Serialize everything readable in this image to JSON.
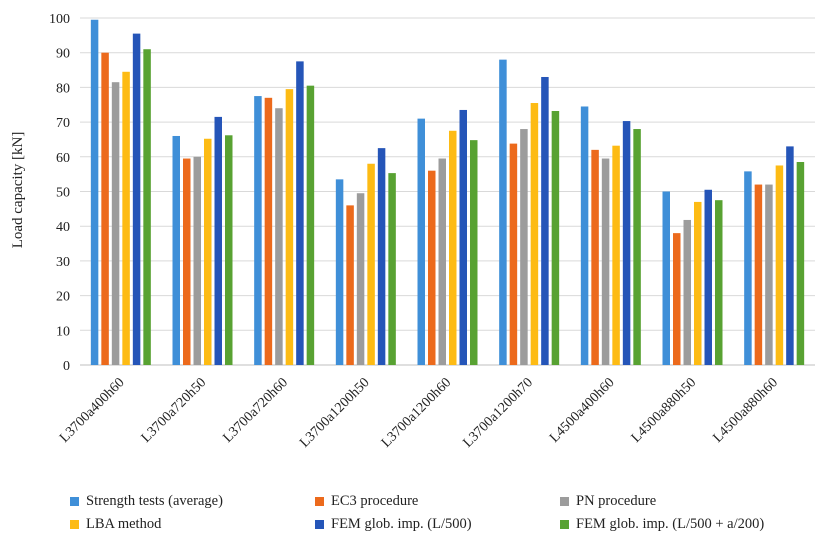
{
  "chart_data": {
    "type": "bar",
    "ylabel": "Load capacity [kN]",
    "ylim": [
      0,
      100
    ],
    "yticks": [
      0,
      10,
      20,
      30,
      40,
      50,
      60,
      70,
      80,
      90,
      100
    ],
    "grid": true,
    "legend_position": "bottom",
    "categories": [
      "L3700a400h60",
      "L3700a720h50",
      "L3700a720h60",
      "L3700a1200h50",
      "L3700a1200h60",
      "L3700a1200h70",
      "L4500a400h60",
      "L4500a880h50",
      "L4500a880h60"
    ],
    "series": [
      {
        "name": "Strength tests (average)",
        "color": "#3f8fd8",
        "values": [
          99.5,
          66.0,
          77.5,
          53.5,
          71.0,
          88.0,
          74.5,
          50.0,
          55.8
        ]
      },
      {
        "name": "EC3 procedure",
        "color": "#ec6a1c",
        "values": [
          90.0,
          59.5,
          77.0,
          46.0,
          56.0,
          63.8,
          62.0,
          38.0,
          52.0
        ]
      },
      {
        "name": "PN procedure",
        "color": "#9c9c9c",
        "values": [
          81.5,
          60.0,
          74.0,
          49.5,
          59.5,
          68.0,
          59.5,
          41.8,
          52.0
        ]
      },
      {
        "name": "LBA method",
        "color": "#fdbb14",
        "values": [
          84.5,
          65.2,
          79.5,
          58.0,
          67.5,
          75.5,
          63.2,
          47.0,
          57.5
        ]
      },
      {
        "name": "FEM glob. imp. (L/500)",
        "color": "#2555b8",
        "values": [
          95.5,
          71.5,
          87.5,
          62.5,
          73.5,
          83.0,
          70.3,
          50.5,
          63.0
        ]
      },
      {
        "name": "FEM glob. imp. (L/500 + a/200)",
        "color": "#58a232",
        "values": [
          91.0,
          66.2,
          80.5,
          55.3,
          64.8,
          73.2,
          68.0,
          47.5,
          58.5
        ]
      }
    ]
  }
}
